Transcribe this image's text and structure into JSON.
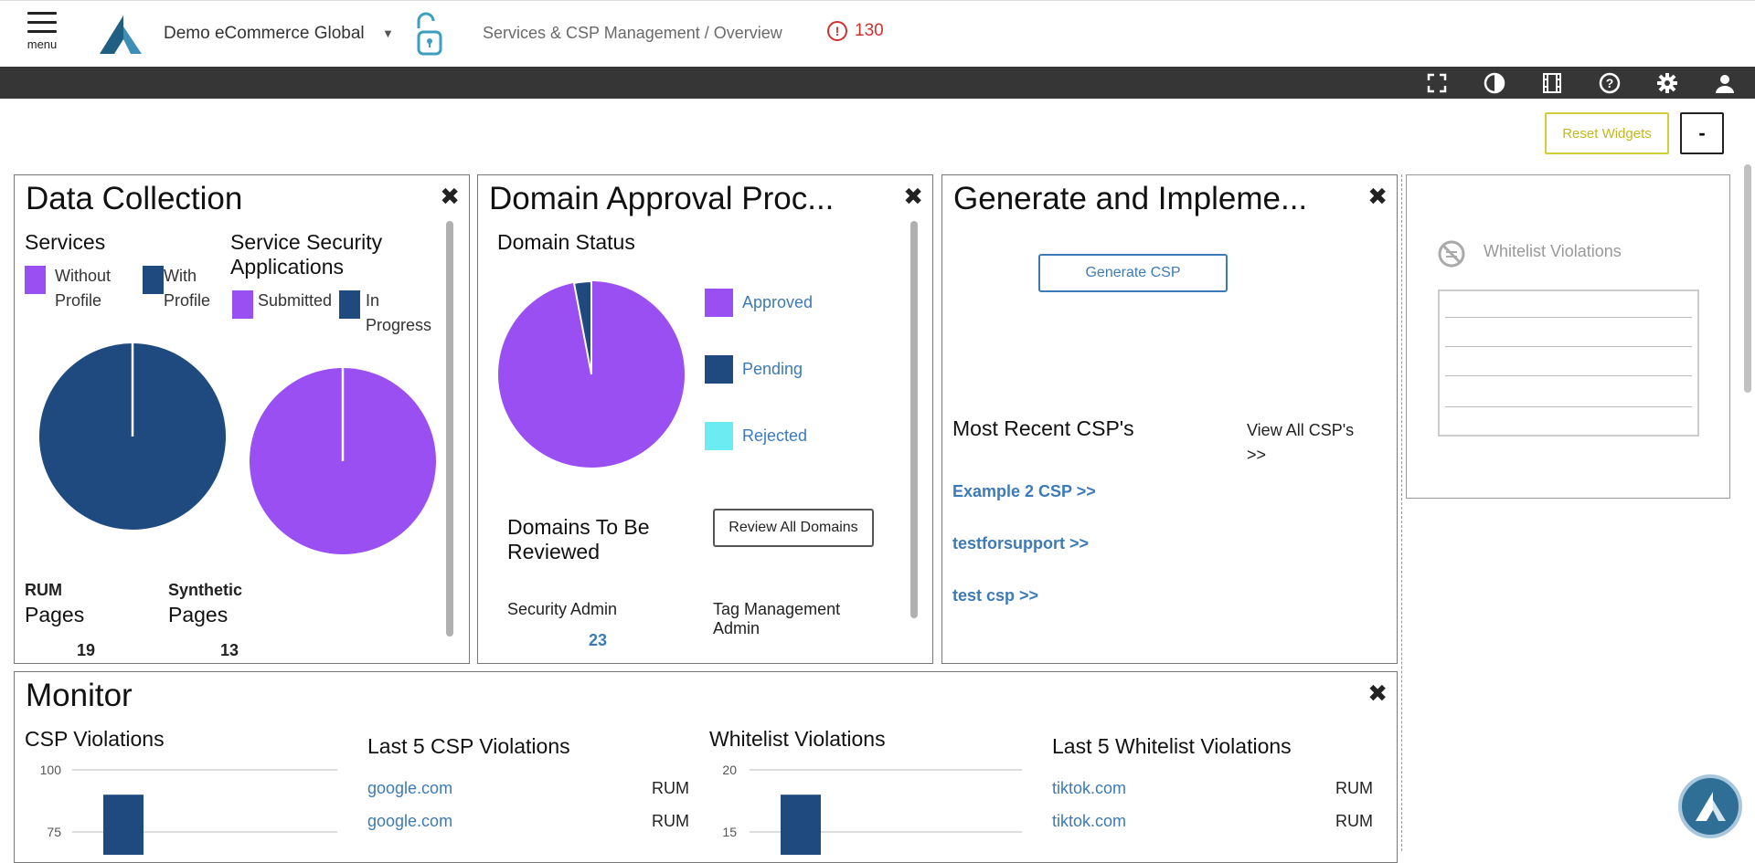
{
  "header": {
    "menu_label": "menu",
    "org_name": "Demo eCommerce Global",
    "breadcrumb": "Services & CSP Management / Overview",
    "alert_count": "130",
    "alert_color": "#d0312d"
  },
  "toolbar": {
    "icons": [
      "fullscreen-icon",
      "contrast-icon",
      "film-icon",
      "help-icon",
      "gear-icon",
      "user-icon"
    ],
    "reset_widgets": "Reset Widgets",
    "minimize": "-"
  },
  "data_collection": {
    "title": "Data Collection",
    "services_heading": "Services",
    "services_legend": [
      "Without Profile",
      "With Profile"
    ],
    "ssa_heading": "Service Security Applications",
    "ssa_legend": [
      "Submitted",
      "In Progress"
    ],
    "services_pie": {
      "without_profile": 0.5,
      "with_profile": 99.5
    },
    "ssa_pie": {
      "submitted": 99.5,
      "in_progress": 0.5
    },
    "rum_label": "RUM",
    "rum_pages_label": "Pages",
    "rum_pages": "19",
    "synthetic_label": "Synthetic",
    "synthetic_pages_label": "Pages",
    "synthetic_pages": "13"
  },
  "domain_approval": {
    "title": "Domain Approval Proc...",
    "status_heading": "Domain Status",
    "legend": [
      "Approved",
      "Pending",
      "Rejected"
    ],
    "pie": {
      "approved": 97,
      "pending": 3,
      "rejected": 0
    },
    "to_review_heading": "Domains To Be Reviewed",
    "review_button": "Review All Domains",
    "security_admin_label": "Security Admin",
    "security_admin_value": "23",
    "tag_admin_label": "Tag Management Admin"
  },
  "generate_csp": {
    "title": "Generate and Impleme...",
    "generate_button": "Generate CSP",
    "recent_heading": "Most Recent CSP's",
    "view_all": "View All CSP's >>",
    "recent": [
      "Example 2 CSP >>",
      "testforsupport >>",
      "test csp >>"
    ]
  },
  "whitelist_widget": {
    "title": "Whitelist Violations"
  },
  "monitor": {
    "title": "Monitor",
    "csp_heading": "CSP Violations",
    "csp_ticks": [
      "100",
      "75"
    ],
    "csp_bar_value": 90,
    "last5_csp_heading": "Last 5 CSP Violations",
    "last5_csp": [
      {
        "domain": "google.com",
        "source": "RUM"
      },
      {
        "domain": "google.com",
        "source": "RUM"
      }
    ],
    "wl_heading": "Whitelist Violations",
    "wl_ticks": [
      "20",
      "15"
    ],
    "wl_bar_value": 18,
    "last5_wl_heading": "Last 5 Whitelist Violations",
    "last5_wl": [
      {
        "domain": "tiktok.com",
        "source": "RUM"
      },
      {
        "domain": "tiktok.com",
        "source": "RUM"
      }
    ]
  },
  "colors": {
    "purple": "#9a4ff2",
    "navy": "#1f4a80",
    "cyan": "#6cebf2",
    "link": "#3d7ab8"
  }
}
